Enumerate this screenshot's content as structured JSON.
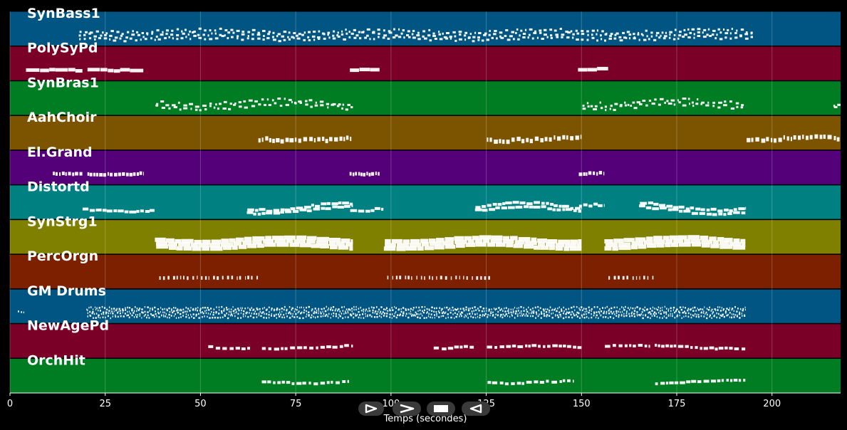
{
  "chart_data": {
    "type": "piano-roll",
    "xlabel": "Temps (secondes)",
    "xlim": [
      0,
      218
    ],
    "xticks": [
      0,
      25,
      50,
      75,
      100,
      125,
      150,
      175,
      200
    ],
    "grid": true,
    "tracks": [
      {
        "name": "SynBass1",
        "color": "#005582",
        "style": "bass",
        "segments": [
          [
            18,
            195,
            3
          ]
        ]
      },
      {
        "name": "PolySyPd",
        "color": "#7a0028",
        "style": "pad",
        "segments": [
          [
            4,
            19,
            1
          ],
          [
            20,
            35,
            1
          ],
          [
            89,
            97,
            1
          ],
          [
            149,
            157,
            1
          ]
        ]
      },
      {
        "name": "SynBras1",
        "color": "#007c22",
        "style": "lead",
        "segments": [
          [
            38,
            90,
            2
          ],
          [
            150,
            193,
            2
          ],
          [
            216,
            218,
            2
          ]
        ]
      },
      {
        "name": "AahChoir",
        "color": "#7c5400",
        "style": "choir",
        "segments": [
          [
            65,
            90,
            1
          ],
          [
            125,
            150,
            1
          ],
          [
            193,
            218,
            1
          ]
        ]
      },
      {
        "name": "El.Grand",
        "color": "#540078",
        "style": "piano",
        "segments": [
          [
            11,
            19,
            1
          ],
          [
            20,
            35,
            1
          ],
          [
            89,
            97,
            1
          ],
          [
            149,
            156,
            1
          ]
        ]
      },
      {
        "name": "Distortd",
        "color": "#008080",
        "style": "guitar",
        "segments": [
          [
            19,
            38,
            1
          ],
          [
            62,
            90,
            2
          ],
          [
            89,
            98,
            1
          ],
          [
            122,
            150,
            2
          ],
          [
            149,
            156,
            1
          ],
          [
            165,
            193,
            2
          ]
        ]
      },
      {
        "name": "SynStrg1",
        "color": "#808000",
        "style": "strings",
        "segments": [
          [
            38,
            90,
            3
          ],
          [
            98,
            150,
            3
          ],
          [
            156,
            193,
            3
          ]
        ]
      },
      {
        "name": "PercOrgn",
        "color": "#7c2000",
        "style": "perc",
        "segments": [
          [
            39,
            66,
            1
          ],
          [
            99,
            126,
            1
          ],
          [
            157,
            169,
            1
          ]
        ]
      },
      {
        "name": "GM Drums",
        "color": "#005582",
        "style": "drums",
        "segments": [
          [
            2,
            4,
            1
          ],
          [
            20,
            193,
            4
          ]
        ]
      },
      {
        "name": "NewAgePd",
        "color": "#7a0028",
        "style": "melody",
        "segments": [
          [
            52,
            63,
            1
          ],
          [
            66,
            90,
            1
          ],
          [
            111,
            122,
            1
          ],
          [
            125,
            150,
            1
          ],
          [
            156,
            168,
            1
          ],
          [
            169,
            193,
            1
          ]
        ]
      },
      {
        "name": "OrchHit",
        "color": "#007c22",
        "style": "melody",
        "segments": [
          [
            66,
            89,
            1
          ],
          [
            125,
            148,
            1
          ],
          [
            169,
            193,
            1
          ]
        ]
      }
    ]
  },
  "controls": {
    "buttons": [
      {
        "name": "play-button",
        "icon": "play-icon"
      },
      {
        "name": "fast-forward-button",
        "icon": "fast-forward-icon"
      },
      {
        "name": "stop-button",
        "icon": "stop-icon"
      },
      {
        "name": "rewind-button",
        "icon": "rewind-icon"
      }
    ]
  }
}
